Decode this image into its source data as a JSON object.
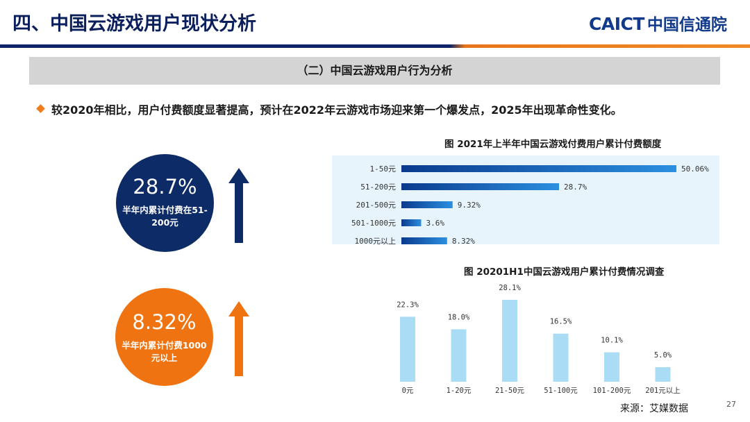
{
  "header": {
    "title": "四、中国云游戏用户现状分析",
    "logo_mark": "CAICT",
    "logo_cn": "中国信通院"
  },
  "section_title": "（二）中国云游戏用户行为分析",
  "bullet": "较2020年相比，用户付费额度显著提高，预计在2022年云游戏市场迎来第一个爆发点，2025年出现革命性变化。",
  "highlights": [
    {
      "value": "28.7%",
      "label": "半年内累计付费在51-200元",
      "color": "#0d2b66",
      "trend": "up"
    },
    {
      "value": "8.32%",
      "label": "半年内累计付费1000元以上",
      "color": "#ef7311",
      "trend": "up"
    }
  ],
  "colors": {
    "navy": "#0d2b66",
    "orange": "#ef7311",
    "bar_gradient_start": "#0a3a8c",
    "bar_gradient_end": "#2b8fe0",
    "column_color": "#aadcf6",
    "chart_bg": "#e8f4fb"
  },
  "chart_data": [
    {
      "type": "bar",
      "orientation": "horizontal",
      "title": "图  2021年上半年中国云游戏付费用户累计付费额度",
      "categories": [
        "1-50元",
        "51-200元",
        "201-500元",
        "501-1000元",
        "1000元以上"
      ],
      "values": [
        50.06,
        28.7,
        9.32,
        3.6,
        8.32
      ],
      "value_labels": [
        "50.06%",
        "28.7%",
        "9.32%",
        "3.6%",
        "8.32%"
      ],
      "xlim": [
        0,
        50.06
      ]
    },
    {
      "type": "bar",
      "orientation": "vertical",
      "title": "图  20201H1中国云游戏用户累计付费情况调查",
      "categories": [
        "0元",
        "1-20元",
        "21-50元",
        "51-100元",
        "101-200元",
        "201元以上"
      ],
      "values": [
        22.3,
        18.0,
        28.1,
        16.5,
        10.1,
        5.0
      ],
      "value_labels": [
        "22.3%",
        "18.0%",
        "28.1%",
        "16.5%",
        "10.1%",
        "5.0%"
      ],
      "ylim": [
        0,
        28.1
      ]
    }
  ],
  "footer": {
    "source": "来源：艾媒数据",
    "page": "27"
  }
}
